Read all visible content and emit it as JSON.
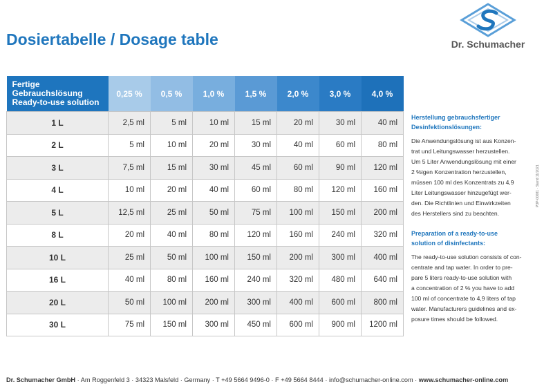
{
  "title": "Dosiertabelle / Dosage table",
  "brand": "Dr. Schumacher",
  "table": {
    "corner": [
      "Fertige",
      "Gebrauchslösung",
      "Ready-to-use solution"
    ],
    "header_colors": [
      "#1e75be",
      "#a8cbe9",
      "#92bde4",
      "#78aede",
      "#5a9ad5",
      "#3c88cc",
      "#2a7bc4",
      "#1e71ba"
    ],
    "columns": [
      "0,25 %",
      "0,5 %",
      "1,0 %",
      "1,5 %",
      "2,0 %",
      "3,0 %",
      "4,0 %"
    ],
    "rows": [
      {
        "label": "1 L",
        "values": [
          "2,5 ml",
          "5 ml",
          "10 ml",
          "15 ml",
          "20 ml",
          "30 ml",
          "40 ml"
        ]
      },
      {
        "label": "2 L",
        "values": [
          "5 ml",
          "10 ml",
          "20 ml",
          "30 ml",
          "40 ml",
          "60 ml",
          "80 ml"
        ]
      },
      {
        "label": "3 L",
        "values": [
          "7,5 ml",
          "15 ml",
          "30 ml",
          "45 ml",
          "60 ml",
          "90 ml",
          "120 ml"
        ]
      },
      {
        "label": "4 L",
        "values": [
          "10 ml",
          "20 ml",
          "40 ml",
          "60 ml",
          "80 ml",
          "120 ml",
          "160 ml"
        ]
      },
      {
        "label": "5 L",
        "values": [
          "12,5 ml",
          "25 ml",
          "50 ml",
          "75 ml",
          "100 ml",
          "150 ml",
          "200 ml"
        ]
      },
      {
        "label": "8 L",
        "values": [
          "20 ml",
          "40 ml",
          "80 ml",
          "120 ml",
          "160 ml",
          "240 ml",
          "320 ml"
        ]
      },
      {
        "label": "10 L",
        "values": [
          "25 ml",
          "50 ml",
          "100 ml",
          "150 ml",
          "200 ml",
          "300 ml",
          "400 ml"
        ]
      },
      {
        "label": "16 L",
        "values": [
          "40 ml",
          "80 ml",
          "160 ml",
          "240 ml",
          "320 ml",
          "480 ml",
          "640 ml"
        ]
      },
      {
        "label": "20 L",
        "values": [
          "50 ml",
          "100 ml",
          "200 ml",
          "300 ml",
          "400 ml",
          "600 ml",
          "800 ml"
        ]
      },
      {
        "label": "30 L",
        "values": [
          "75 ml",
          "150 ml",
          "300 ml",
          "450 ml",
          "600 ml",
          "900 ml",
          "1200 ml"
        ]
      }
    ]
  },
  "side_de": {
    "heading": [
      "Herstellung gebrauchsfertiger",
      "Desinfektionslösungen:"
    ],
    "lines": [
      "Die Anwendungslösung ist aus Konzen-",
      "trat und Leitungswasser herzustellen.",
      "Um 5 Liter Anwendungslösung mit einer",
      "2 %igen Konzentration herzustellen,",
      "müssen 100 ml des  Konzentrats zu 4,9",
      "Liter Leitungswasser hinzugefügt wer-",
      "den. Die Richtlinien und Einwirkzeiten",
      "des Herstellers sind zu beachten."
    ]
  },
  "side_en": {
    "heading": [
      "Preparation of a ready-to-use",
      "solution of disinfectants:"
    ],
    "lines": [
      "The ready-to-use solution consists of con-",
      "centrate and tap water. In order to pre-",
      "pare 5 liters ready-to-use solution with",
      "a concentration of 2 % you have to add",
      "100 ml of concentrate to 4,9 liters of tap",
      "water. Manufacturers guidelines and ex-",
      "posure times should be followed."
    ]
  },
  "doc_code": "P3P-00081 · Stand 11/2021",
  "footer": {
    "company": "Dr. Schumacher GmbH",
    "address": " · Am Roggenfeld 3 · 34323 Malsfeld · Germany · T +49 5664 9496-0 · F +49 5664 8444 · info@schumacher-online.com · ",
    "website": "www.schumacher-online.com"
  }
}
